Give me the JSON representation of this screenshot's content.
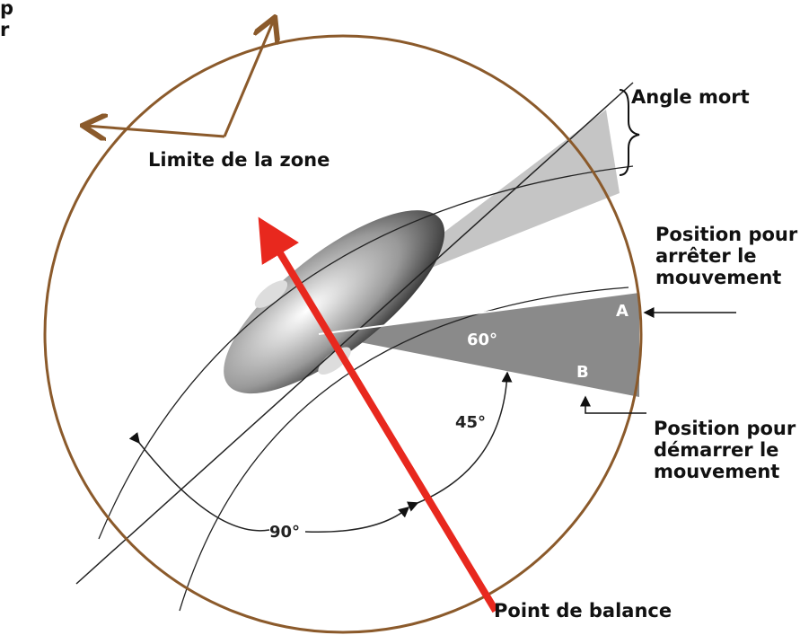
{
  "corner_text": [
    "p",
    "r"
  ],
  "labels": {
    "angle_mort": "Angle mort",
    "limite": "Limite de la zone",
    "arreter": [
      "Position pour",
      "arrêter le",
      "mouvement"
    ],
    "demarrer": [
      "Position pour",
      "démarrer le",
      "mouvement"
    ],
    "balance": "Point de balance"
  },
  "marks": {
    "a": "A",
    "b": "B"
  },
  "angles": {
    "a60": "60°",
    "a45": "45°",
    "a90": "90°"
  }
}
